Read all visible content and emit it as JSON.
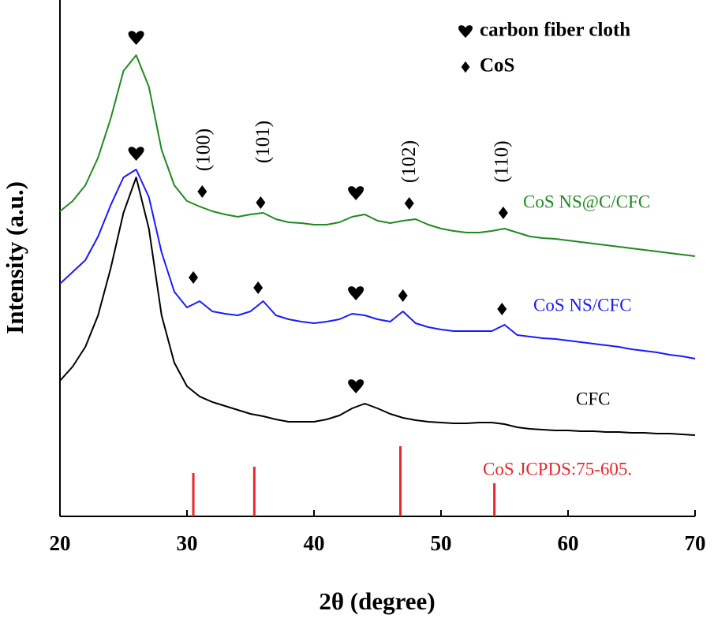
{
  "chart_data": {
    "type": "line",
    "xlabel": "2θ (degree)",
    "ylabel": "Intensity (a.u.)",
    "xlim": [
      20,
      70
    ],
    "ylim": [
      0,
      655
    ],
    "xticks": [
      20,
      30,
      40,
      50,
      60,
      70
    ],
    "x": [
      20,
      21,
      22,
      23,
      24,
      25,
      26,
      27,
      28,
      29,
      30,
      31,
      32,
      33,
      34,
      35,
      36,
      37,
      38,
      39,
      40,
      41,
      42,
      43,
      44,
      45,
      46,
      47,
      48,
      49,
      50,
      51,
      52,
      53,
      54,
      55,
      56,
      57,
      58,
      59,
      60,
      61,
      62,
      63,
      64,
      65,
      66,
      67,
      68,
      69,
      70
    ],
    "series": [
      {
        "name": "CoS NS@C/CFC",
        "color": "#1f8a1f",
        "values": [
          387,
          400,
          420,
          455,
          505,
          565,
          585,
          545,
          465,
          420,
          400,
          393,
          387,
          383,
          380,
          383,
          385,
          377,
          373,
          372,
          370,
          370,
          373,
          380,
          383,
          375,
          372,
          375,
          377,
          370,
          365,
          362,
          360,
          360,
          362,
          365,
          360,
          355,
          353,
          352,
          350,
          348,
          346,
          344,
          342,
          340,
          338,
          336,
          334,
          332,
          330
        ]
      },
      {
        "name": "CoS NS/CFC",
        "color": "#1a1aff",
        "values": [
          295,
          310,
          325,
          355,
          395,
          430,
          440,
          405,
          335,
          285,
          265,
          273,
          260,
          257,
          255,
          260,
          273,
          255,
          250,
          247,
          245,
          247,
          250,
          257,
          255,
          250,
          247,
          260,
          245,
          240,
          237,
          235,
          235,
          235,
          235,
          243,
          230,
          228,
          226,
          225,
          223,
          221,
          219,
          217,
          215,
          212,
          210,
          208,
          205,
          203,
          200
        ]
      },
      {
        "name": "CFC",
        "color": "#000000",
        "values": [
          172,
          190,
          215,
          255,
          315,
          385,
          430,
          365,
          255,
          195,
          165,
          152,
          145,
          140,
          135,
          130,
          127,
          123,
          120,
          120,
          120,
          123,
          128,
          137,
          143,
          137,
          130,
          125,
          122,
          120,
          119,
          118,
          118,
          119,
          119,
          117,
          113,
          111,
          110,
          109,
          109,
          108,
          108,
          107,
          107,
          106,
          106,
          105,
          105,
          104,
          103
        ]
      }
    ],
    "reference": {
      "name": "CoS JCPDS:75-605.",
      "color": "#e8262b",
      "x": [
        30.5,
        35.3,
        46.8,
        54.2
      ],
      "values": [
        55,
        63,
        89,
        42
      ]
    },
    "markers": [
      {
        "name": "carbon fiber cloth",
        "symbol": "heart",
        "x": [
          26,
          26,
          43.3,
          43.3,
          43.3
        ],
        "y": [
          607,
          460,
          410,
          283,
          165
        ]
      },
      {
        "name": "CoS",
        "symbol": "diamond",
        "x": [
          31.2,
          35.8,
          47.5,
          54.9,
          30.5,
          35.6,
          47.0,
          54.8
        ],
        "y": [
          412,
          398,
          397,
          385,
          303,
          290,
          280,
          263
        ]
      }
    ],
    "annotations": [
      {
        "text": "(100)",
        "x": 31.4,
        "y": 465
      },
      {
        "text": "(101)",
        "x": 36.1,
        "y": 475
      },
      {
        "text": "(102)",
        "x": 47.6,
        "y": 450
      },
      {
        "text": "(110)",
        "x": 54.9,
        "y": 450
      }
    ]
  }
}
